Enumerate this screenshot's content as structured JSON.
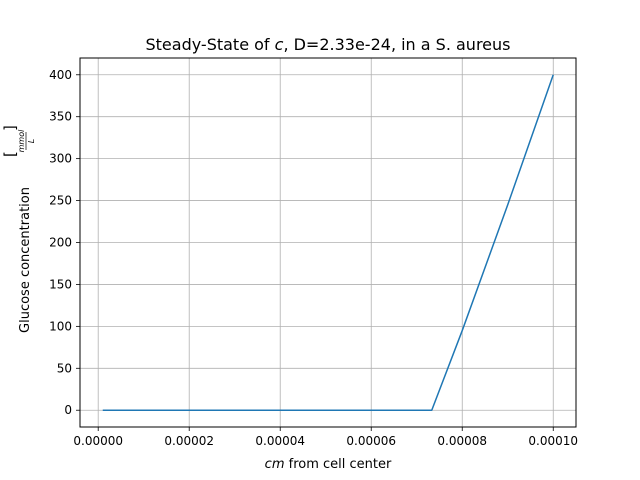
{
  "chart_data": {
    "type": "line",
    "title_prefix": "Steady-State of ",
    "title_var": "c",
    "title_suffix": ", D=2.33e-24, in a S. aureus",
    "xlabel_var": "cm",
    "xlabel_suffix": " from cell center",
    "ylabel_text": "Glucose concentration ",
    "ylabel_unit_num": "mmol",
    "ylabel_unit_den": "L",
    "xlim": [
      -4e-06,
      0.000105
    ],
    "ylim": [
      -20,
      420
    ],
    "xticks": [
      0.0,
      2e-05,
      4e-05,
      6e-05,
      8e-05,
      0.0001
    ],
    "xtick_labels": [
      "0.00000",
      "0.00002",
      "0.00004",
      "0.00006",
      "0.00008",
      "0.00010"
    ],
    "yticks": [
      0,
      50,
      100,
      150,
      200,
      250,
      300,
      350,
      400
    ],
    "ytick_labels": [
      "0",
      "50",
      "100",
      "150",
      "200",
      "250",
      "300",
      "350",
      "400"
    ],
    "grid": true,
    "line_color": "#1f77b4",
    "series": [
      {
        "x": [
          1e-06,
          1e-05,
          2e-05,
          3e-05,
          4e-05,
          5e-05,
          6e-05,
          7.33e-05,
          8e-05,
          9e-05,
          0.0001
        ],
        "y": [
          0,
          0,
          0,
          0,
          0,
          0,
          0,
          0,
          95,
          245,
          400
        ]
      }
    ]
  }
}
